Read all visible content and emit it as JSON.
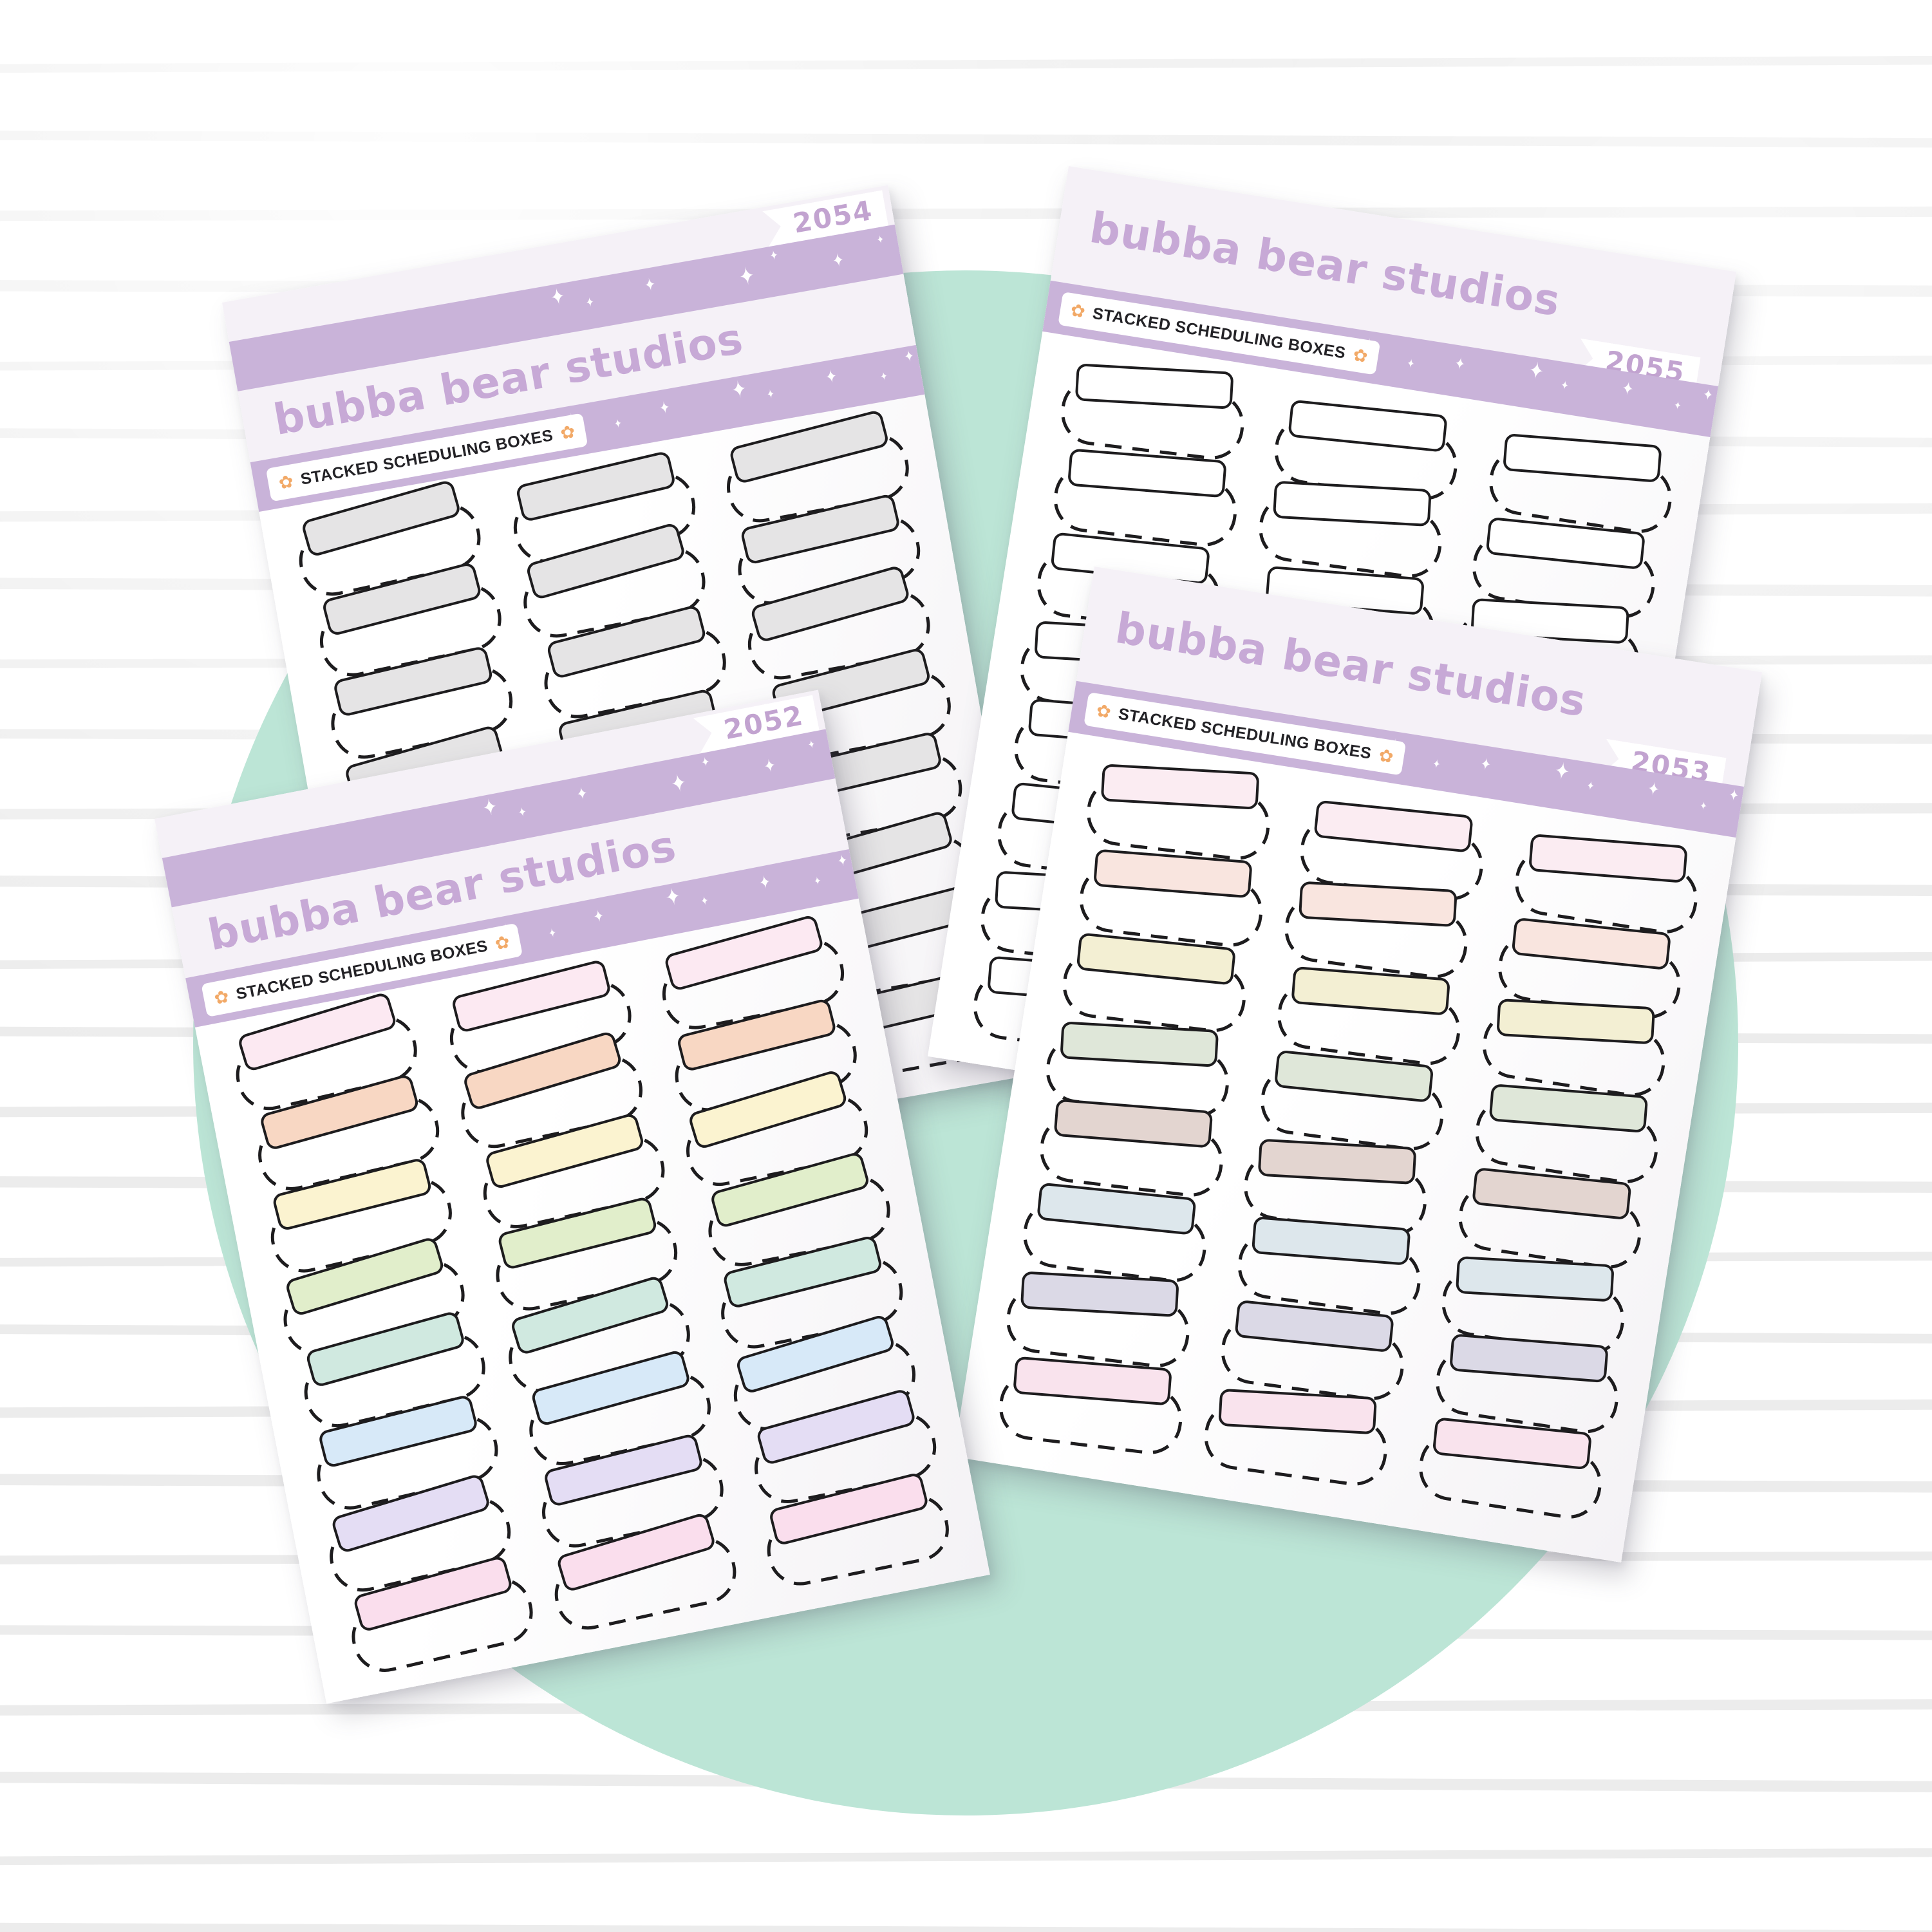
{
  "product": {
    "brand": "bubba bear studios",
    "name": "Stacked Scheduling Boxes",
    "label": "STACKED SCHEDULING BOXES"
  },
  "icons": {
    "sparkle-icon": "✦",
    "flower-icon": "✿"
  },
  "palette": {
    "band_purple": "#c9b3d9",
    "logo_purple": "#c7a9d6",
    "number_purple": "#c2a3d0",
    "flower_orange": "#f2a967",
    "outline_ink": "#1d1c1e",
    "header_tint": "#f5f1f7",
    "circle_mint": "#bce5d6",
    "stripe_gray": "#ececec",
    "background_white": "#ffffff"
  },
  "sheets": [
    {
      "id": "2054",
      "variant": "A",
      "rows": 8,
      "columns": 3,
      "row_colors": [
        "#e5e4e5",
        "#e5e4e5",
        "#e5e4e5",
        "#e5e4e5",
        "#e5e4e5",
        "#e5e4e5",
        "#e5e4e5",
        "#e5e4e5"
      ]
    },
    {
      "id": "2055",
      "variant": "B",
      "rows": 8,
      "columns": 3,
      "row_colors": [
        "#ffffff",
        "#ffffff",
        "#ffffff",
        "#ffffff",
        "#ffffff",
        "#ffffff",
        "#ffffff",
        "#ffffff"
      ]
    },
    {
      "id": "2053",
      "variant": "B",
      "rows": 8,
      "columns": 3,
      "row_colors": [
        "#fbecf2",
        "#f9e5df",
        "#f3efd3",
        "#dfe7d9",
        "#e3d5d0",
        "#dde7ec",
        "#dbd9e6",
        "#f9e3ed"
      ]
    },
    {
      "id": "2052",
      "variant": "A",
      "rows": 8,
      "columns": 3,
      "row_colors": [
        "#fce9f2",
        "#f8d7c3",
        "#fbf3d0",
        "#e1eecb",
        "#d0e9e0",
        "#d7e9f8",
        "#e4ddf4",
        "#fadeed"
      ]
    }
  ]
}
